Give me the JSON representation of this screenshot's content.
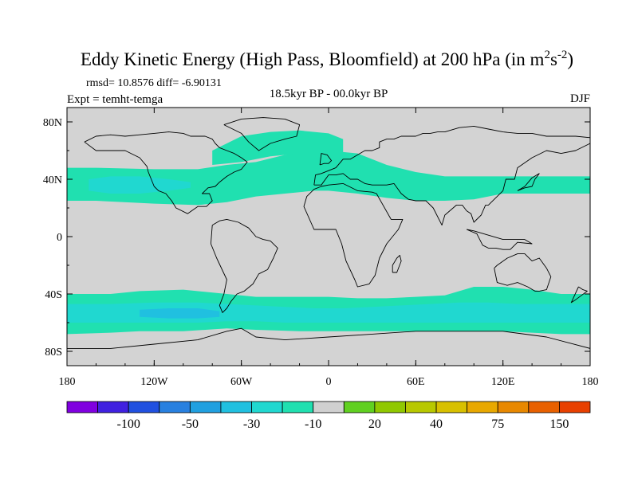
{
  "chart_data": {
    "type": "heatmap",
    "projection": "cylindrical-equidistant",
    "title": {
      "main": "Eddy Kinetic Energy (High Pass, Bloomfield) at 200 hPa (in m",
      "sup1": "2",
      "mid": "s",
      "sup2": "-2",
      "close": ")"
    },
    "stats": "rmsd= 10.8576 diff= -6.90131",
    "experiment": "Expt = temht-temga",
    "period": "18.5kyr BP - 00.0kyr BP",
    "season": "DJF",
    "xaxis": {
      "range": [
        -180,
        180
      ],
      "ticks": [
        -180,
        -120,
        -60,
        0,
        60,
        120,
        180
      ],
      "tick_labels": [
        "180",
        "120W",
        "60W",
        "0",
        "60E",
        "120E",
        "180"
      ]
    },
    "yaxis": {
      "range": [
        -90,
        90
      ],
      "ticks": [
        80,
        40,
        0,
        -40,
        -80
      ],
      "tick_labels": [
        "80N",
        "40N",
        "0",
        "40S",
        "80S"
      ]
    },
    "colorbar": {
      "colors": [
        "#8000e0",
        "#4020e0",
        "#2050e0",
        "#2880e0",
        "#20a0e0",
        "#20c0e0",
        "#20d8d0",
        "#20e0b0",
        "#d0d0d0",
        "#60d020",
        "#90c800",
        "#b8c800",
        "#d8c000",
        "#e8a800",
        "#e88800",
        "#e86000",
        "#e84000"
      ],
      "labels": [
        {
          "text": "-100",
          "boundary": 2
        },
        {
          "text": "-50",
          "boundary": 4
        },
        {
          "text": "-30",
          "boundary": 6
        },
        {
          "text": "-10",
          "boundary": 8
        },
        {
          "text": "20",
          "boundary": 10
        },
        {
          "text": "40",
          "boundary": 12
        },
        {
          "text": "75",
          "boundary": 14
        },
        {
          "text": "150",
          "boundary": 16
        }
      ]
    },
    "fill_colors": {
      "background": "#d3d3d3",
      "level_m10": "#20e0b0",
      "level_m20": "#20d8d0",
      "level_m30": "#20c0e0"
    },
    "anomaly_bands": [
      {
        "name": "nh-storm-track",
        "level": "-10",
        "lon": [
          -180,
          -160,
          -120,
          -90,
          -70,
          -50,
          -30,
          -10,
          0,
          20,
          40,
          60,
          80,
          100,
          120,
          140,
          160,
          180
        ],
        "lat_top": [
          48,
          48,
          47,
          47,
          50,
          52,
          57,
          60,
          60,
          58,
          50,
          45,
          42,
          42,
          42,
          42,
          42,
          42
        ],
        "lat_bottom": [
          25,
          25,
          23,
          22,
          24,
          28,
          30,
          32,
          32,
          30,
          27,
          25,
          25,
          26,
          30,
          30,
          30,
          30
        ]
      },
      {
        "name": "north-atlantic-high",
        "level": "-10",
        "lon": [
          -80,
          -60,
          -40,
          -20,
          0,
          10
        ],
        "lat_top": [
          60,
          70,
          73,
          74,
          72,
          68
        ],
        "lat_bottom": [
          50,
          52,
          56,
          58,
          58,
          58
        ]
      },
      {
        "name": "nh-core",
        "level": "-20",
        "lon": [
          -165,
          -150,
          -130,
          -110,
          -95
        ],
        "lat_top": [
          40,
          42,
          42,
          40,
          38
        ],
        "lat_bottom": [
          32,
          30,
          30,
          32,
          34
        ]
      },
      {
        "name": "sh-outer",
        "level": "-10",
        "lon": [
          -180,
          -150,
          -130,
          -100,
          -70,
          -50,
          -20,
          0,
          20,
          40,
          60,
          80,
          100,
          120,
          140,
          160,
          180
        ],
        "lat_top": [
          -40,
          -40,
          -38,
          -37,
          -40,
          -42,
          -42,
          -42,
          -43,
          -43,
          -42,
          -41,
          -35,
          -35,
          -37,
          -40,
          -40
        ],
        "lat_bottom": [
          -68,
          -67,
          -66,
          -66,
          -64,
          -65,
          -66,
          -66,
          -66,
          -66,
          -66,
          -66,
          -66,
          -66,
          -67,
          -68,
          -68
        ]
      },
      {
        "name": "sh-inner",
        "level": "-20",
        "lon": [
          -180,
          -150,
          -120,
          -90,
          -70,
          -50,
          -30,
          -10,
          10,
          30,
          50,
          70,
          90,
          110,
          130,
          150,
          180
        ],
        "lat_top": [
          -47,
          -47,
          -46,
          -46,
          -47,
          -48,
          -49,
          -50,
          -50,
          -49,
          -48,
          -47,
          -46,
          -46,
          -47,
          -47,
          -47
        ],
        "lat_bottom": [
          -60,
          -60,
          -60,
          -60,
          -59,
          -59,
          -60,
          -60,
          -60,
          -60,
          -60,
          -60,
          -60,
          -60,
          -60,
          -60,
          -60
        ]
      },
      {
        "name": "sh-core",
        "level": "-30",
        "lon": [
          -130,
          -110,
          -90,
          -75
        ],
        "lat_top": [
          -51,
          -50,
          -50,
          -52
        ],
        "lat_bottom": [
          -56,
          -57,
          -57,
          -56
        ]
      }
    ],
    "coastlines": [
      {
        "name": "north-america",
        "lon": [
          -168,
          -160,
          -150,
          -140,
          -130,
          -125,
          -124,
          -120,
          -117,
          -112,
          -108,
          -105,
          -97,
          -90,
          -84,
          -80,
          -82,
          -87,
          -83,
          -78,
          -75,
          -70,
          -65,
          -60,
          -56,
          -60,
          -65,
          -70,
          -75,
          -78,
          -80,
          -85,
          -95,
          -100,
          -110,
          -120,
          -130,
          -140,
          -150,
          -160,
          -168
        ],
        "lat": [
          66,
          60,
          60,
          60,
          55,
          49,
          45,
          35,
          32,
          30,
          25,
          20,
          16,
          21,
          21,
          25,
          30,
          30,
          34,
          35,
          38,
          42,
          45,
          47,
          52,
          55,
          58,
          60,
          62,
          65,
          68,
          70,
          70,
          72,
          73,
          72,
          71,
          70,
          71,
          70,
          66
        ]
      },
      {
        "name": "south-america",
        "lon": [
          -80,
          -75,
          -70,
          -62,
          -55,
          -50,
          -45,
          -40,
          -35,
          -38,
          -42,
          -48,
          -52,
          -58,
          -63,
          -67,
          -70,
          -73,
          -75,
          -72,
          -70,
          -77,
          -81,
          -80
        ],
        "lat": [
          8,
          11,
          12,
          10,
          6,
          0,
          -2,
          -3,
          -8,
          -15,
          -23,
          -26,
          -33,
          -38,
          -40,
          -45,
          -50,
          -53,
          -48,
          -40,
          -30,
          -15,
          -5,
          8
        ]
      },
      {
        "name": "greenland",
        "lon": [
          -72,
          -60,
          -45,
          -30,
          -20,
          -22,
          -30,
          -40,
          -48,
          -55,
          -60,
          -72
        ],
        "lat": [
          78,
          82,
          83,
          82,
          78,
          70,
          68,
          65,
          60,
          66,
          72,
          78
        ]
      },
      {
        "name": "eurasia",
        "lon": [
          -10,
          -9,
          -5,
          0,
          5,
          10,
          15,
          20,
          25,
          30,
          35,
          35,
          40,
          45,
          50,
          55,
          60,
          65,
          70,
          75,
          80,
          90,
          100,
          110,
          120,
          130,
          140,
          150,
          160,
          170,
          180,
          180,
          170,
          160,
          150,
          140,
          130,
          128,
          122,
          120,
          110,
          108,
          105,
          100,
          98,
          95,
          92,
          88,
          80,
          78,
          72,
          67,
          60,
          55,
          50,
          45,
          40,
          35,
          30,
          25,
          20,
          15,
          10,
          5,
          0,
          -5,
          -10
        ],
        "lat": [
          36,
          43,
          44,
          46,
          48,
          54,
          54,
          57,
          60,
          60,
          62,
          66,
          68,
          68,
          70,
          70,
          70,
          72,
          72,
          73,
          73,
          76,
          77,
          75,
          73,
          72,
          72,
          70,
          70,
          70,
          69,
          65,
          60,
          58,
          60,
          55,
          48,
          40,
          40,
          32,
          22,
          22,
          15,
          10,
          16,
          18,
          22,
          22,
          15,
          8,
          20,
          25,
          25,
          26,
          30,
          37,
          36,
          36,
          36,
          37,
          40,
          40,
          44,
          43,
          43,
          36,
          36
        ]
      },
      {
        "name": "africa",
        "lon": [
          -17,
          -15,
          -10,
          -5,
          0,
          10,
          20,
          30,
          33,
          43,
          51,
          48,
          40,
          35,
          32,
          28,
          20,
          18,
          12,
          9,
          5,
          -5,
          -10,
          -17
        ],
        "lat": [
          21,
          28,
          33,
          35,
          36,
          37,
          32,
          31,
          30,
          12,
          12,
          5,
          -5,
          -15,
          -27,
          -33,
          -35,
          -30,
          -17,
          -5,
          5,
          5,
          5,
          21
        ]
      },
      {
        "name": "australia",
        "lon": [
          114,
          116,
          123,
          130,
          137,
          142,
          145,
          150,
          153,
          150,
          145,
          140,
          135,
          130,
          123,
          116,
          114
        ],
        "lat": [
          -22,
          -32,
          -34,
          -32,
          -35,
          -38,
          -38,
          -37,
          -28,
          -22,
          -15,
          -17,
          -12,
          -12,
          -15,
          -20,
          -22
        ]
      },
      {
        "name": "antarctica",
        "lon": [
          -180,
          -150,
          -120,
          -90,
          -70,
          -60,
          -50,
          -30,
          0,
          30,
          60,
          90,
          120,
          150,
          180
        ],
        "lat": [
          -78,
          -78,
          -75,
          -72,
          -66,
          -64,
          -70,
          -72,
          -70,
          -68,
          -66,
          -66,
          -66,
          -70,
          -78
        ]
      },
      {
        "name": "madagascar",
        "lon": [
          44,
          47,
          50,
          49,
          47,
          44,
          44
        ],
        "lat": [
          -25,
          -25,
          -17,
          -13,
          -15,
          -20,
          -25
        ]
      },
      {
        "name": "japan",
        "lon": [
          130,
          135,
          140,
          142,
          145,
          140,
          135,
          130
        ],
        "lat": [
          32,
          34,
          35,
          40,
          44,
          41,
          35,
          32
        ]
      },
      {
        "name": "british-isles",
        "lon": [
          -6,
          -3,
          0,
          2,
          -1,
          -5,
          -6
        ],
        "lat": [
          50,
          51,
          51,
          53,
          57,
          58,
          50
        ]
      },
      {
        "name": "indonesia",
        "lon": [
          95,
          102,
          106,
          110,
          115,
          120,
          125,
          130,
          140,
          135,
          120,
          110,
          100,
          95
        ],
        "lat": [
          5,
          2,
          -6,
          -8,
          -8,
          -9,
          -9,
          -4,
          -5,
          -2,
          -2,
          1,
          4,
          5
        ]
      },
      {
        "name": "new-zealand",
        "lon": [
          172,
          175,
          178,
          174,
          170,
          167,
          172
        ],
        "lat": [
          -35,
          -37,
          -38,
          -41,
          -44,
          -46,
          -35
        ]
      }
    ]
  }
}
